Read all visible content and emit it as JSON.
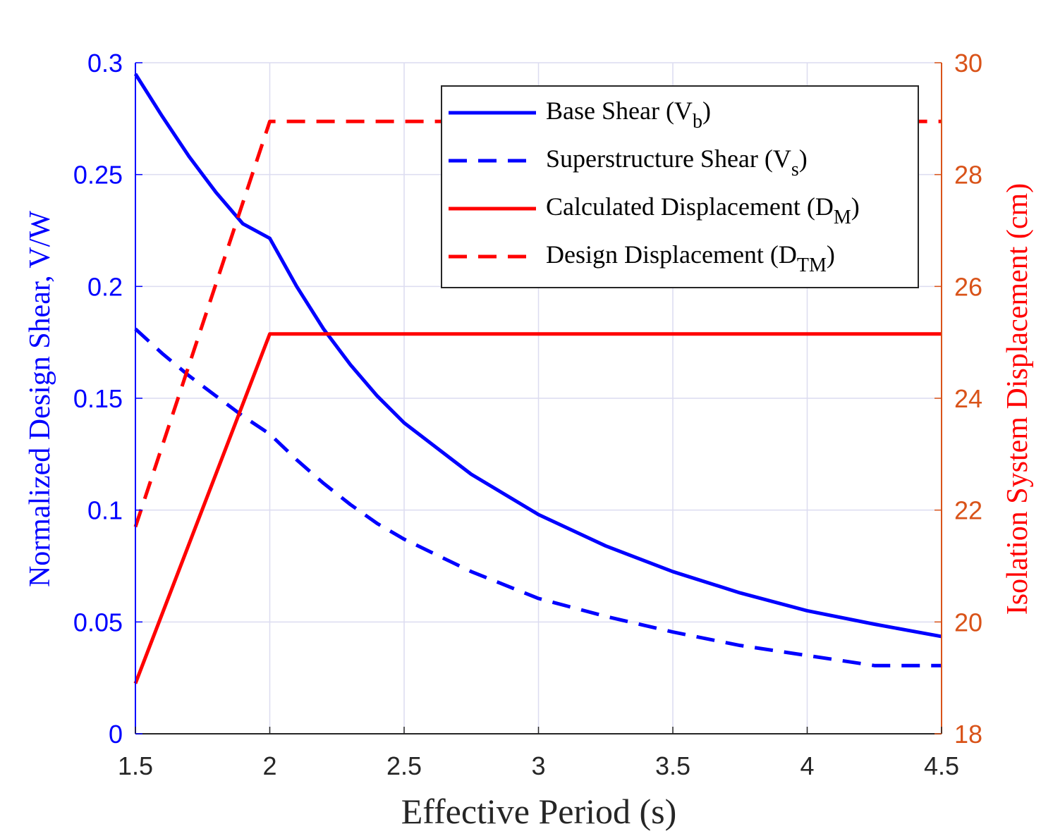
{
  "colors": {
    "left_axis": "#0000ff",
    "right_axis_ticks": "#d95319",
    "right_axis_label": "#ff0000",
    "grid": "#dcdcf0",
    "base_shear": "#0000ff",
    "super_shear": "#0000ff",
    "calc_disp": "#ff0000",
    "design_disp": "#ff0000"
  },
  "chart_data": {
    "type": "line",
    "xlabel": "Effective Period (s)",
    "ylabel_left": "Normalized Design Shear, V/W",
    "ylabel_right": "Isolation System Displacement (cm)",
    "xlim": [
      1.5,
      4.5
    ],
    "ylim_left": [
      0,
      0.3
    ],
    "ylim_right": [
      18,
      30
    ],
    "xticks": [
      "1.5",
      "2",
      "2.5",
      "3",
      "3.5",
      "4",
      "4.5"
    ],
    "yticks_left": [
      "0",
      "0.05",
      "0.1",
      "0.15",
      "0.2",
      "0.25",
      "0.3"
    ],
    "yticks_right": [
      "18",
      "20",
      "22",
      "24",
      "26",
      "28",
      "30"
    ],
    "grid": true,
    "legend_position": "top-right",
    "series": [
      {
        "name": "Base Shear (V",
        "sub": "b",
        "suffix": ")",
        "axis": "left",
        "style": "solid",
        "x": [
          1.5,
          1.6,
          1.7,
          1.8,
          1.9,
          2.0,
          2.1,
          2.2,
          2.3,
          2.4,
          2.5,
          2.75,
          3.0,
          3.25,
          3.5,
          3.75,
          4.0,
          4.25,
          4.5
        ],
        "y": [
          0.295,
          0.276,
          0.258,
          0.242,
          0.228,
          0.2215,
          0.2,
          0.181,
          0.165,
          0.151,
          0.139,
          0.116,
          0.098,
          0.084,
          0.0725,
          0.063,
          0.055,
          0.049,
          0.0435
        ]
      },
      {
        "name": "Superstructure Shear (V",
        "sub": "s",
        "suffix": ")",
        "axis": "left",
        "style": "dashed",
        "x": [
          1.5,
          1.6,
          1.7,
          1.8,
          1.9,
          2.0,
          2.1,
          2.2,
          2.3,
          2.4,
          2.5,
          2.75,
          3.0,
          3.25,
          3.5,
          3.75,
          4.0,
          4.25,
          4.5
        ],
        "y": [
          0.181,
          0.17,
          0.16,
          0.151,
          0.142,
          0.134,
          0.1225,
          0.112,
          0.1025,
          0.094,
          0.087,
          0.0725,
          0.0605,
          0.0525,
          0.0455,
          0.0395,
          0.035,
          0.0305,
          0.0305
        ]
      },
      {
        "name": "Calculated Displacement (D",
        "sub": "M",
        "suffix": ")",
        "axis": "right",
        "style": "solid",
        "x": [
          1.5,
          2.0,
          4.5
        ],
        "y": [
          18.9,
          25.15,
          25.15
        ]
      },
      {
        "name": "Design Displacement (D",
        "sub": "TM",
        "suffix": ")",
        "axis": "right",
        "style": "dashed",
        "x": [
          1.5,
          2.0,
          4.5
        ],
        "y": [
          21.7,
          28.95,
          28.95
        ]
      }
    ]
  }
}
